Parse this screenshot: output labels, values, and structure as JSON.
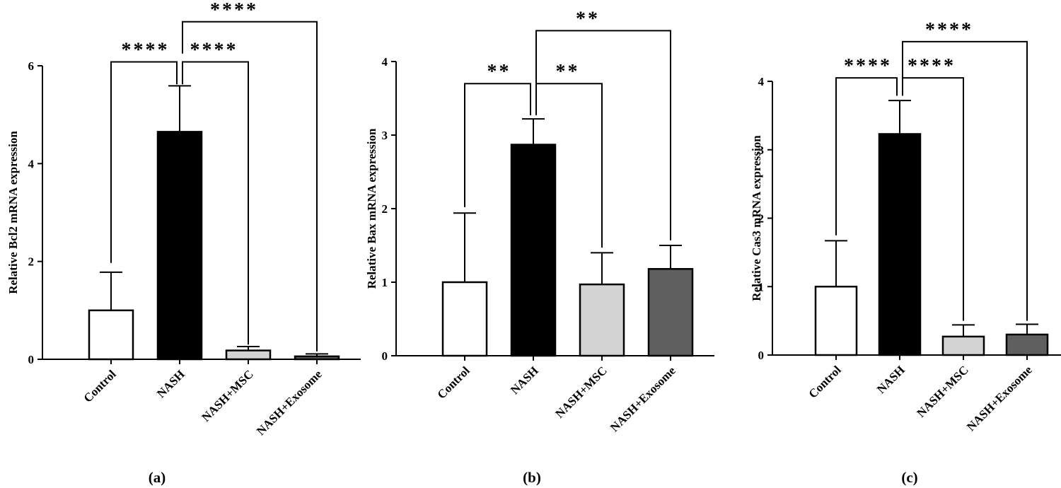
{
  "chart_data": [
    {
      "type": "bar",
      "panel_label": "(a)",
      "ylabel": "Relative Bcl2 mRNA expression",
      "ylim": [
        0,
        6
      ],
      "yticks": [
        0,
        2,
        4,
        6
      ],
      "categories": [
        "Control",
        "NASH",
        "NASH+MSC",
        "NASH+Exosome"
      ],
      "values": [
        1.0,
        4.65,
        0.18,
        0.06
      ],
      "errors": [
        0.78,
        0.94,
        0.08,
        0.05
      ],
      "colors": [
        "#ffffff",
        "#000000",
        "#d3d3d3",
        "#5f5f5f"
      ],
      "significance": [
        {
          "from": 0,
          "to": 1,
          "label": "****",
          "level": 6.08,
          "left_end": 1.97,
          "right_end": 5.62
        },
        {
          "from": 1,
          "to": 2,
          "label": "****",
          "level": 6.08,
          "left_end": 5.62,
          "right_end": 0.3
        },
        {
          "from": 1,
          "to": 3,
          "label": "****",
          "level": 6.9,
          "left_end": 6.25,
          "right_end": 0.16
        }
      ]
    },
    {
      "type": "bar",
      "panel_label": "(b)",
      "ylabel": "Relative Bax mRNA expression",
      "ylim": [
        0,
        4
      ],
      "yticks": [
        0,
        1,
        2,
        3,
        4
      ],
      "categories": [
        "Control",
        "NASH",
        "NASH+MSC",
        "NASH+Exosome"
      ],
      "values": [
        1.0,
        2.87,
        0.97,
        1.18
      ],
      "errors": [
        0.94,
        0.35,
        0.43,
        0.32
      ],
      "colors": [
        "#ffffff",
        "#000000",
        "#d3d3d3",
        "#5f5f5f"
      ],
      "significance": [
        {
          "from": 0,
          "to": 1,
          "label": "**",
          "level": 3.7,
          "left_end": 2.02,
          "right_end": 3.27
        },
        {
          "from": 1,
          "to": 2,
          "label": "**",
          "level": 3.7,
          "left_end": 3.27,
          "right_end": 1.47
        },
        {
          "from": 1,
          "to": 3,
          "label": "**",
          "level": 4.42,
          "left_end": 3.7,
          "right_end": 1.57
        }
      ]
    },
    {
      "type": "bar",
      "panel_label": "(c)",
      "ylabel": "Relative Cas3 mRNA expression",
      "ylim": [
        0,
        4
      ],
      "yticks": [
        0,
        1,
        2,
        3,
        4
      ],
      "categories": [
        "Control",
        "NASH",
        "NASH+MSC",
        "NASH+Exosome"
      ],
      "values": [
        1.0,
        3.23,
        0.27,
        0.3
      ],
      "errors": [
        0.67,
        0.49,
        0.17,
        0.15
      ],
      "colors": [
        "#ffffff",
        "#000000",
        "#d3d3d3",
        "#5f5f5f"
      ],
      "significance": [
        {
          "from": 0,
          "to": 1,
          "label": "****",
          "level": 4.05,
          "left_end": 1.75,
          "right_end": 3.79
        },
        {
          "from": 1,
          "to": 2,
          "label": "****",
          "level": 4.05,
          "left_end": 3.79,
          "right_end": 0.5
        },
        {
          "from": 1,
          "to": 3,
          "label": "****",
          "level": 4.58,
          "left_end": 4.05,
          "right_end": 0.5
        }
      ]
    }
  ]
}
